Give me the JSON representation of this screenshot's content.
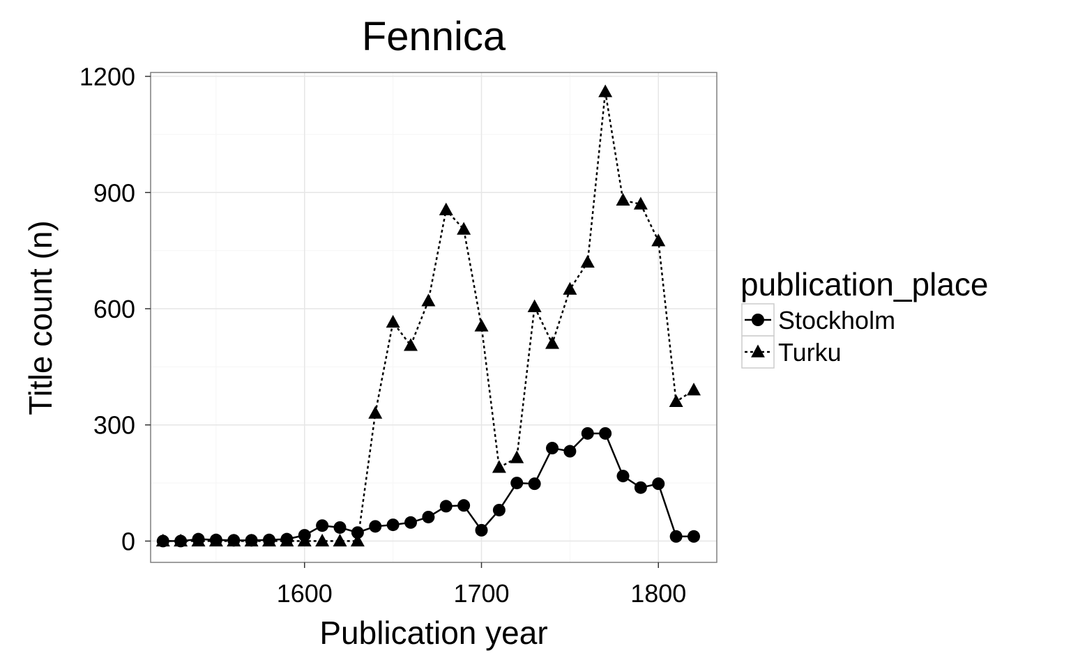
{
  "chart_data": {
    "type": "line",
    "title": "Fennica",
    "xlabel": "Publication year",
    "ylabel": "Title count (n)",
    "xlim": [
      1513,
      1833
    ],
    "ylim": [
      -55,
      1210
    ],
    "x_ticks": [
      1600,
      1700,
      1800
    ],
    "y_ticks": [
      0,
      300,
      600,
      900,
      1200
    ],
    "grid": true,
    "legend": {
      "title": "publication_place",
      "position": "right"
    },
    "series": [
      {
        "name": "Stockholm",
        "marker": "circle",
        "linestyle": "solid",
        "x": [
          1520,
          1530,
          1540,
          1550,
          1560,
          1570,
          1580,
          1590,
          1600,
          1610,
          1620,
          1630,
          1640,
          1650,
          1660,
          1670,
          1680,
          1690,
          1700,
          1710,
          1720,
          1730,
          1740,
          1750,
          1760,
          1770,
          1780,
          1790,
          1800,
          1810,
          1820
        ],
        "values": [
          0,
          0,
          5,
          3,
          2,
          2,
          3,
          5,
          15,
          40,
          35,
          22,
          38,
          42,
          48,
          62,
          90,
          92,
          28,
          80,
          150,
          148,
          240,
          232,
          278,
          278,
          168,
          138,
          148,
          12,
          12
        ]
      },
      {
        "name": "Turku",
        "marker": "triangle",
        "linestyle": "dotted",
        "x": [
          1520,
          1530,
          1540,
          1550,
          1560,
          1570,
          1580,
          1590,
          1600,
          1610,
          1620,
          1630,
          1640,
          1650,
          1660,
          1670,
          1680,
          1690,
          1700,
          1710,
          1720,
          1730,
          1740,
          1750,
          1760,
          1770,
          1780,
          1790,
          1800,
          1810,
          1820
        ],
        "values": [
          0,
          0,
          0,
          0,
          0,
          0,
          0,
          0,
          0,
          0,
          0,
          0,
          330,
          565,
          505,
          620,
          855,
          805,
          555,
          190,
          215,
          605,
          510,
          650,
          720,
          1160,
          880,
          870,
          775,
          360,
          390
        ]
      }
    ]
  }
}
